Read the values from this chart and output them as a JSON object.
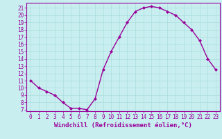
{
  "x": [
    0,
    1,
    2,
    3,
    4,
    5,
    6,
    7,
    8,
    9,
    10,
    11,
    12,
    13,
    14,
    15,
    16,
    17,
    18,
    19,
    20,
    21,
    22,
    23
  ],
  "y": [
    11,
    10,
    9.5,
    9,
    8,
    7.2,
    7.2,
    7,
    8.5,
    12.5,
    15,
    17,
    19,
    20.5,
    21,
    21.2,
    21,
    20.5,
    20,
    19,
    18,
    16.5,
    14,
    12.5
  ],
  "line_color": "#990099",
  "marker": "D",
  "marker_size": 2.0,
  "bg_color": "#c8eef0",
  "grid_color": "#aadddd",
  "xlabel": "Windchill (Refroidissement éolien,°C)",
  "xlabel_fontsize": 6.5,
  "ylim": [
    6.8,
    21.7
  ],
  "yticks": [
    7,
    8,
    9,
    10,
    11,
    12,
    13,
    14,
    15,
    16,
    17,
    18,
    19,
    20,
    21
  ],
  "tick_fontsize": 5.5,
  "line_width": 1.0
}
